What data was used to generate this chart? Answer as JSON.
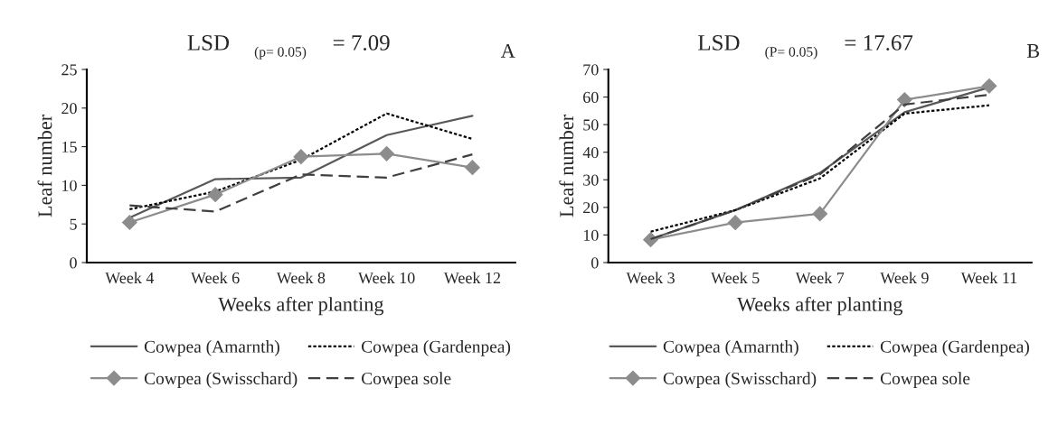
{
  "chart_data": [
    {
      "type": "line",
      "title": "LSD $_{(p= 0.05)}$ = 7.09",
      "annotations": [
        "A"
      ],
      "xlabel": "Weeks after planting",
      "ylabel": "Leaf number",
      "categories": [
        "Week 4",
        "Week 6",
        "Week 8",
        "Week 10",
        "Week 12"
      ],
      "series": [
        {
          "name": "Cowpea (Amarnth)",
          "color": "#595959",
          "line_style": "solid",
          "marker": "none",
          "values": [
            5.8,
            10.8,
            11.0,
            16.5,
            19.0
          ]
        },
        {
          "name": "Cowpea (Gardenpea)",
          "color": "#000000",
          "line_style": "dotted",
          "marker": "none",
          "values": [
            6.9,
            9.2,
            13.3,
            19.3,
            16.0
          ]
        },
        {
          "name": "Cowpea (Swisschard)",
          "color": "#8c8c8c",
          "line_style": "solid",
          "marker": "diamond",
          "values": [
            5.2,
            8.8,
            13.7,
            14.1,
            12.3
          ]
        },
        {
          "name": "Cowpea sole",
          "color": "#404040",
          "line_style": "dashed",
          "marker": "none",
          "values": [
            7.4,
            6.6,
            11.4,
            11.0,
            14.0
          ]
        }
      ],
      "ylim": [
        0,
        25
      ],
      "yticks": [
        0,
        5,
        10,
        15,
        20,
        25
      ],
      "grid": false,
      "legend": "bottom"
    },
    {
      "type": "line",
      "title": "LSD $_{(P= 0.05)}$ = 17.67",
      "annotations": [
        "B"
      ],
      "xlabel": "Weeks after planting",
      "ylabel": "Leaf number",
      "categories": [
        "Week 3",
        "Week 5",
        "Week 7",
        "Week 9",
        "Week 11"
      ],
      "series": [
        {
          "name": "Cowpea (Amarnth)",
          "color": "#595959",
          "line_style": "solid",
          "marker": "none",
          "values": [
            8.5,
            19,
            32.5,
            54.5,
            63.5
          ]
        },
        {
          "name": "Cowpea (Gardenpea)",
          "color": "#000000",
          "line_style": "dotted",
          "marker": "none",
          "values": [
            11.2,
            19,
            30.5,
            54,
            57
          ]
        },
        {
          "name": "Cowpea (Swisschard)",
          "color": "#8c8c8c",
          "line_style": "solid",
          "marker": "diamond",
          "values": [
            8.3,
            14.5,
            17.7,
            59,
            64
          ]
        },
        {
          "name": "Cowpea sole",
          "color": "#404040",
          "line_style": "dashed",
          "marker": "none",
          "values": [
            8.5,
            19,
            32,
            57.3,
            60.8
          ]
        }
      ],
      "ylim": [
        0,
        70
      ],
      "yticks": [
        0,
        10,
        20,
        30,
        40,
        50,
        60,
        70
      ],
      "grid": false,
      "legend": "bottom"
    }
  ]
}
